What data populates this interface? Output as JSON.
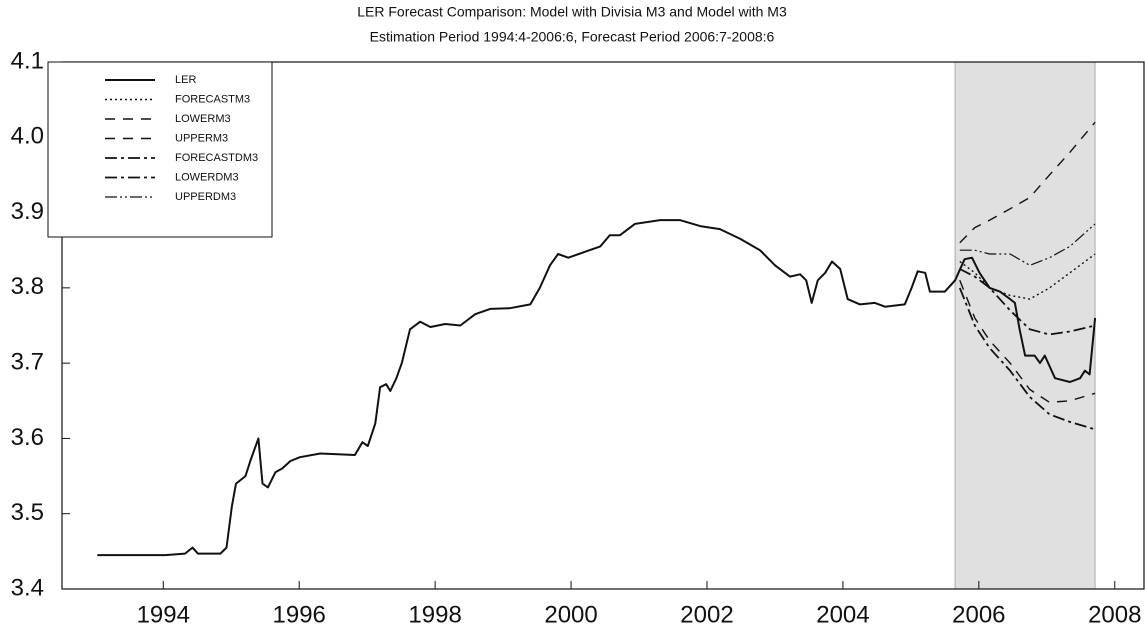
{
  "chart_data": {
    "type": "line",
    "title": "LER Forecast Comparison: Model with Divisia M3 and Model with M3",
    "subtitle": "Estimation Period 1994:4-2006:6, Forecast Period 2006:7-2008:6",
    "xlim": [
      1992.51,
      2008.43
    ],
    "xticks": [
      1994,
      1996,
      1998,
      2000,
      2002,
      2004,
      2006,
      2008
    ],
    "ylim": [
      3.4,
      4.1
    ],
    "yticks": [
      3.4,
      3.5,
      3.6,
      3.7,
      3.8,
      3.9,
      {
        "value": 4,
        "label": "4.0"
      },
      4.1
    ],
    "shaded_x": [
      2005.65,
      2007.71
    ],
    "shade_color": "#e0e0e0",
    "legend": "upper left",
    "series": [
      {
        "name": "LER",
        "color": "#111111",
        "dash": "solid",
        "x": [
          1993.03,
          1994.03,
          1994.32,
          1994.43,
          1994.51,
          1994.84,
          1994.93,
          1995.01,
          1995.07,
          1995.21,
          1995.28,
          1995.4,
          1995.46,
          1995.54,
          1995.65,
          1995.75,
          1995.87,
          1996.01,
          1996.31,
          1996.82,
          1996.93,
          1997.01,
          1997.12,
          1997.19,
          1997.28,
          1997.34,
          1997.43,
          1997.51,
          1997.63,
          1997.78,
          1997.93,
          1998.15,
          1998.37,
          1998.59,
          1998.81,
          1999.1,
          1999.4,
          1999.54,
          1999.69,
          1999.81,
          1999.96,
          2000.21,
          2000.43,
          2000.57,
          2000.72,
          2000.94,
          2001.31,
          2001.6,
          2001.9,
          2002.19,
          2002.49,
          2002.78,
          2003.0,
          2003.22,
          2003.37,
          2003.46,
          2003.54,
          2003.63,
          2003.74,
          2003.84,
          2003.96,
          2004.07,
          2004.25,
          2004.47,
          2004.62,
          2004.91,
          2005.01,
          2005.1,
          2005.21,
          2005.28,
          2005.5,
          2005.65,
          2005.79,
          2005.9,
          2006.01,
          2006.16,
          2006.31,
          2006.46,
          2006.53,
          2006.6,
          2006.68,
          2006.82,
          2006.9,
          2006.97,
          2007.12,
          2007.34,
          2007.49,
          2007.56,
          2007.63,
          2007.71
        ],
        "values": [
          3.445,
          3.445,
          3.447,
          3.455,
          3.447,
          3.447,
          3.455,
          3.51,
          3.54,
          3.55,
          3.57,
          3.6,
          3.54,
          3.535,
          3.555,
          3.56,
          3.57,
          3.575,
          3.58,
          3.578,
          3.595,
          3.59,
          3.62,
          3.668,
          3.672,
          3.663,
          3.68,
          3.7,
          3.745,
          3.755,
          3.748,
          3.752,
          3.75,
          3.765,
          3.772,
          3.773,
          3.778,
          3.8,
          3.83,
          3.845,
          3.84,
          3.848,
          3.855,
          3.87,
          3.87,
          3.885,
          3.89,
          3.89,
          3.882,
          3.878,
          3.865,
          3.85,
          3.83,
          3.815,
          3.818,
          3.81,
          3.78,
          3.81,
          3.82,
          3.835,
          3.825,
          3.785,
          3.778,
          3.78,
          3.775,
          3.778,
          3.8,
          3.822,
          3.82,
          3.795,
          3.795,
          3.81,
          3.838,
          3.84,
          3.82,
          3.8,
          3.795,
          3.785,
          3.78,
          3.745,
          3.71,
          3.71,
          3.7,
          3.71,
          3.68,
          3.675,
          3.68,
          3.69,
          3.685,
          3.76
        ]
      },
      {
        "name": "FORECASTM3",
        "color": "#111111",
        "dash": "dotted",
        "x": [
          2005.72,
          2005.94,
          2006.16,
          2006.46,
          2006.75,
          2007.04,
          2007.34,
          2007.71
        ],
        "values": [
          3.835,
          3.82,
          3.8,
          3.79,
          3.785,
          3.8,
          3.82,
          3.845
        ]
      },
      {
        "name": "LOWERM3",
        "color": "#111111",
        "dash": "dashed",
        "x": [
          2005.72,
          2005.94,
          2006.16,
          2006.46,
          2006.75,
          2007.04,
          2007.34,
          2007.71
        ],
        "values": [
          3.81,
          3.76,
          3.73,
          3.7,
          3.665,
          3.648,
          3.65,
          3.66
        ]
      },
      {
        "name": "UPPERM3",
        "color": "#111111",
        "dash": "dashed",
        "x": [
          2005.72,
          2005.94,
          2006.16,
          2006.46,
          2006.75,
          2007.04,
          2007.34,
          2007.71
        ],
        "values": [
          3.86,
          3.88,
          3.89,
          3.905,
          3.92,
          3.95,
          3.98,
          4.02
        ]
      },
      {
        "name": "FORECASTDM3",
        "color": "#111111",
        "dash": "dashdot",
        "x": [
          2005.72,
          2005.94,
          2006.16,
          2006.46,
          2006.75,
          2007.04,
          2007.34,
          2007.71
        ],
        "values": [
          3.825,
          3.815,
          3.8,
          3.77,
          3.745,
          3.738,
          3.742,
          3.75
        ]
      },
      {
        "name": "LOWERDM3",
        "color": "#111111",
        "dash": "dashdot",
        "x": [
          2005.72,
          2005.94,
          2006.16,
          2006.46,
          2006.75,
          2007.04,
          2007.34,
          2007.71
        ],
        "values": [
          3.8,
          3.75,
          3.72,
          3.69,
          3.655,
          3.632,
          3.622,
          3.612
        ]
      },
      {
        "name": "UPPERDM3",
        "color": "#111111",
        "dash": "dashdotdot",
        "x": [
          2005.72,
          2005.94,
          2006.16,
          2006.46,
          2006.75,
          2007.04,
          2007.34,
          2007.71
        ],
        "values": [
          3.85,
          3.85,
          3.845,
          3.845,
          3.83,
          3.84,
          3.855,
          3.885
        ]
      }
    ]
  }
}
